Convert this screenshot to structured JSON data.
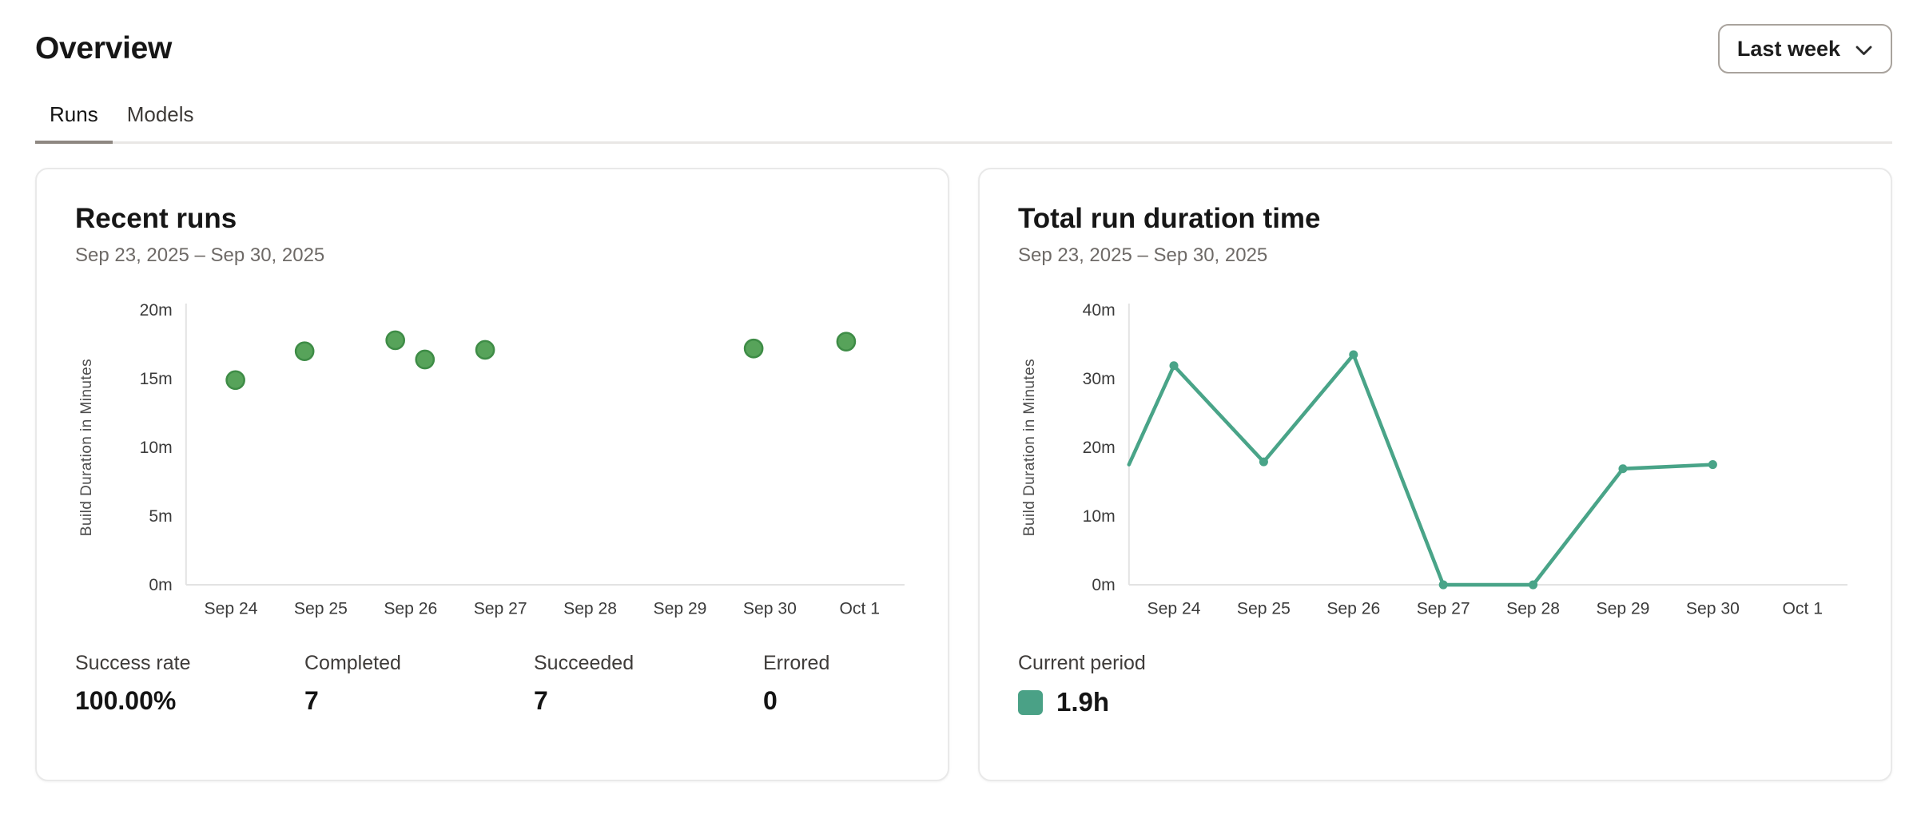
{
  "header": {
    "title": "Overview",
    "time_range": {
      "value": "Last week"
    }
  },
  "tabs": [
    {
      "label": "Runs",
      "active": true
    },
    {
      "label": "Models",
      "active": false
    }
  ],
  "cards": {
    "recent_runs": {
      "title": "Recent runs",
      "date_range": "Sep 23, 2025 – Sep 30, 2025",
      "stats": [
        {
          "label": "Success rate",
          "value": "100.00%"
        },
        {
          "label": "Completed",
          "value": "7"
        },
        {
          "label": "Succeeded",
          "value": "7"
        },
        {
          "label": "Errored",
          "value": "0"
        }
      ]
    },
    "total_run_duration": {
      "title": "Total run duration time",
      "date_range": "Sep 23, 2025 – Sep 30, 2025",
      "legend": {
        "label": "Current period",
        "value": "1.9h",
        "color": "#4aa186"
      }
    }
  },
  "chart_data": [
    {
      "type": "scatter",
      "title": "Recent runs",
      "ylabel": "Build Duration in Minutes",
      "ymax": 20,
      "yticks": [
        0,
        5,
        10,
        15,
        20
      ],
      "ytick_suffix": "m",
      "x_categories": [
        "Sep 24",
        "Sep 25",
        "Sep 26",
        "Sep 27",
        "Sep 28",
        "Sep 29",
        "Sep 30",
        "Oct 1"
      ],
      "points": [
        {
          "x": 0.05,
          "y": 14.9
        },
        {
          "x": 0.82,
          "y": 17.0
        },
        {
          "x": 1.83,
          "y": 17.8
        },
        {
          "x": 2.16,
          "y": 16.4
        },
        {
          "x": 2.83,
          "y": 17.1
        },
        {
          "x": 5.82,
          "y": 17.2
        },
        {
          "x": 6.85,
          "y": 17.7
        }
      ],
      "point_color": "#57a35a",
      "point_stroke": "#3e8c46",
      "grid": false,
      "legend_position": "none"
    },
    {
      "type": "line",
      "title": "Total run duration time",
      "ylabel": "Build Duration in Minutes",
      "ymax": 40,
      "yticks": [
        0,
        10,
        20,
        30,
        40
      ],
      "ytick_suffix": "m",
      "x_categories": [
        "Sep 24",
        "Sep 25",
        "Sep 26",
        "Sep 27",
        "Sep 28",
        "Sep 29",
        "Sep 30",
        "Oct 1"
      ],
      "points": [
        {
          "x": -0.5,
          "y": 17.5,
          "marker": false
        },
        {
          "x": 0,
          "y": 31.9,
          "marker": true
        },
        {
          "x": 1,
          "y": 17.9,
          "marker": true
        },
        {
          "x": 2,
          "y": 33.5,
          "marker": true
        },
        {
          "x": 3,
          "y": 0,
          "marker": true
        },
        {
          "x": 4,
          "y": 0,
          "marker": true
        },
        {
          "x": 5,
          "y": 16.9,
          "marker": true
        },
        {
          "x": 6,
          "y": 17.5,
          "marker": true
        }
      ],
      "line_color": "#49a488",
      "grid": false,
      "legend_position": "bottom-left"
    }
  ]
}
